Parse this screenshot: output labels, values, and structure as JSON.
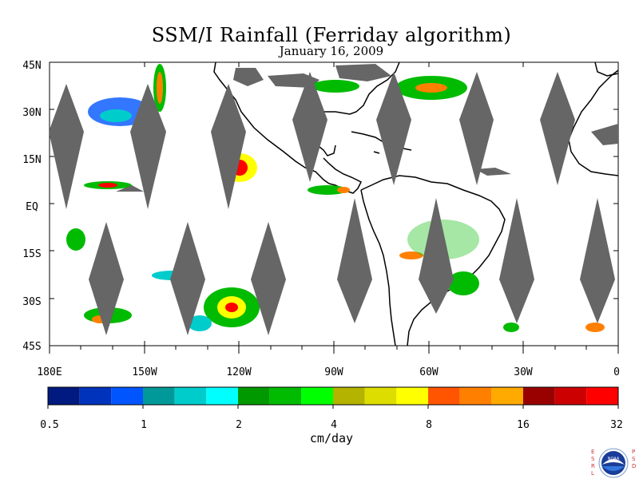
{
  "title": "SSM/I Rainfall (Ferriday algorithm)",
  "subtitle": "January 16, 2009",
  "latitude_labels": [
    "45N",
    "30N",
    "15N",
    "EQ",
    "15S",
    "30S",
    "45S"
  ],
  "longitude_labels": [
    "180E",
    "150W",
    "120W",
    "90W",
    "60W",
    "30W",
    "0"
  ],
  "colorbar": {
    "colors": [
      "#001a80",
      "#0033bb",
      "#0055ff",
      "#009999",
      "#00cccc",
      "#00ffff",
      "#009900",
      "#00bb00",
      "#00ff00",
      "#b3b300",
      "#dddd00",
      "#ffff00",
      "#ff5500",
      "#ff8000",
      "#ffaa00",
      "#990000",
      "#cc0000",
      "#ff0000"
    ],
    "tick_labels": [
      "0.5",
      "1",
      "2",
      "4",
      "8",
      "16",
      "32"
    ],
    "units": "cm/day"
  },
  "logo": {
    "left_letters": [
      "E",
      "S",
      "R",
      "L"
    ],
    "right_letters": [
      "P",
      "S",
      "D"
    ],
    "center_text": "NOAA"
  }
}
